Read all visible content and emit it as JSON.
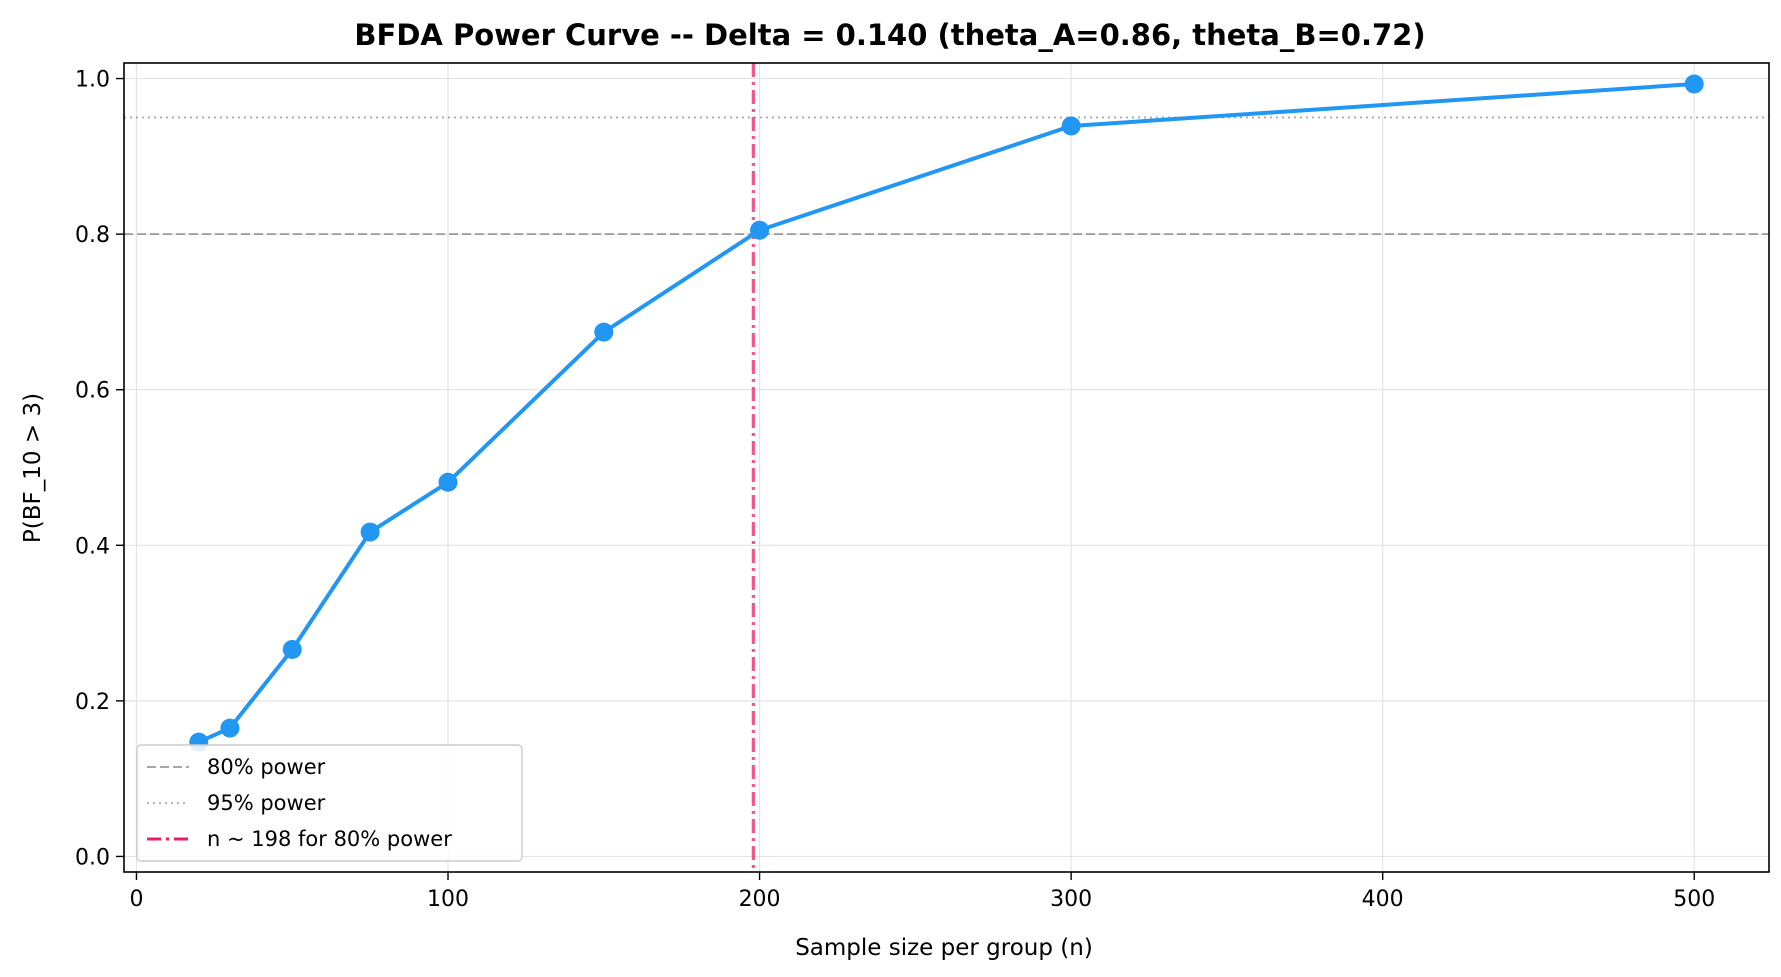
{
  "chart_data": {
    "type": "line",
    "title": "BFDA Power Curve -- Delta = 0.140 (theta_A=0.86, theta_B=0.72)",
    "xlabel": "Sample size per group (n)",
    "ylabel": "P(BF_10 > 3)",
    "xlim": [
      -4,
      524
    ],
    "ylim": [
      -0.02,
      1.02
    ],
    "xticks": [
      0,
      100,
      200,
      300,
      400,
      500
    ],
    "yticks": [
      0.0,
      0.2,
      0.4,
      0.6,
      0.8,
      1.0
    ],
    "xtick_labels": [
      "0",
      "100",
      "200",
      "300",
      "400",
      "500"
    ],
    "ytick_labels": [
      "0.0",
      "0.2",
      "0.4",
      "0.6",
      "0.8",
      "1.0"
    ],
    "grid": true,
    "series": [
      {
        "x": [
          20,
          30,
          50,
          75,
          100,
          150,
          200,
          300,
          500
        ],
        "y": [
          0.147,
          0.165,
          0.266,
          0.417,
          0.481,
          0.674,
          0.805,
          0.939,
          0.993
        ],
        "color": "#2196f3",
        "marker": "circle"
      }
    ],
    "reference_lines": [
      {
        "orientation": "horizontal",
        "value": 0.8,
        "style": "dashed",
        "color": "#999999",
        "label": "80% power"
      },
      {
        "orientation": "horizontal",
        "value": 0.95,
        "style": "dotted",
        "color": "#aaaaaa",
        "label": "95% power"
      },
      {
        "orientation": "vertical",
        "value": 198,
        "style": "dashdot",
        "color": "#e91e63",
        "label": "n ~ 198 for 80% power"
      }
    ],
    "legend": {
      "placement": "lower-left",
      "entries": [
        "80% power",
        "95% power",
        "n ~ 198 for 80% power"
      ]
    }
  }
}
